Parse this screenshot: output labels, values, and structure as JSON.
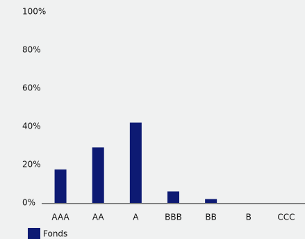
{
  "chart_data": {
    "type": "bar",
    "categories": [
      "AAA",
      "AA",
      "A",
      "BBB",
      "BB",
      "B",
      "CCC"
    ],
    "series": [
      {
        "name": "Fonds",
        "color": "#0d1a73",
        "values": [
          17.5,
          29,
          42,
          6,
          2,
          0,
          0
        ]
      }
    ],
    "ylim": [
      0,
      100
    ],
    "yticks": [
      {
        "value": 0,
        "label": "0%"
      },
      {
        "value": 20,
        "label": "20%"
      },
      {
        "value": 40,
        "label": "40%"
      },
      {
        "value": 60,
        "label": "60%"
      },
      {
        "value": 80,
        "label": "80%"
      },
      {
        "value": 100,
        "label": "100%"
      }
    ],
    "grid": false,
    "legend": "bottom-left"
  }
}
